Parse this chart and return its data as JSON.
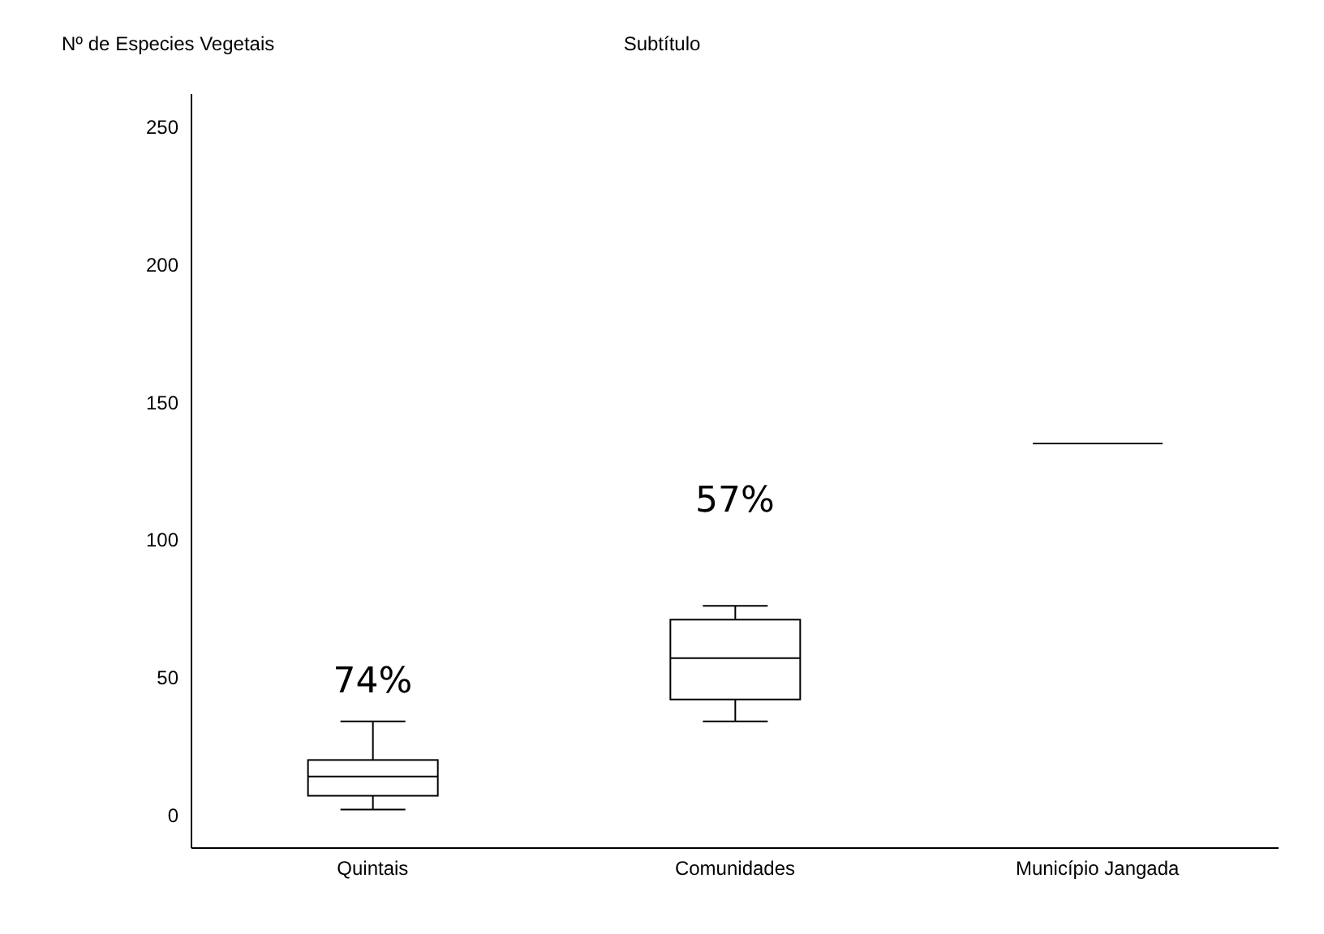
{
  "chart_data": {
    "type": "box",
    "subtitle": "Subtítulo",
    "ylabel": "Nº de Especies Vegetais",
    "categories": [
      "Quintais",
      "Comunidades",
      "Município Jangada"
    ],
    "boxes": [
      {
        "low": 2,
        "q1": 7,
        "median": 14,
        "q3": 20,
        "high": 34
      },
      {
        "low": 34,
        "q1": 42,
        "median": 57,
        "q3": 71,
        "high": 76
      },
      {
        "low": 135,
        "q1": 135,
        "median": 135,
        "q3": 135,
        "high": 135
      }
    ],
    "color": "#000000",
    "ylim": [
      -12,
      262
    ],
    "yticks": [
      0,
      50,
      100,
      150,
      200,
      250
    ],
    "grid": false,
    "annotations": [
      "74%",
      "57%"
    ]
  }
}
